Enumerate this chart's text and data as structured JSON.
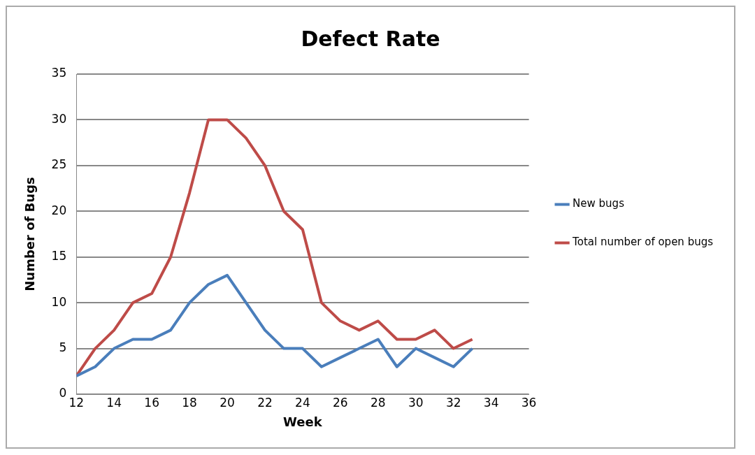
{
  "chart_data": {
    "type": "line",
    "title": "Defect Rate",
    "xlabel": "Week",
    "ylabel": "Number of Bugs",
    "x": [
      12,
      13,
      14,
      15,
      16,
      17,
      18,
      19,
      20,
      21,
      22,
      23,
      24,
      25,
      26,
      27,
      28,
      29,
      30,
      31,
      32,
      33
    ],
    "series": [
      {
        "name": "New bugs",
        "color": "#4a7ebb",
        "values": [
          2,
          3,
          5,
          6,
          6,
          7,
          10,
          12,
          13,
          10,
          7,
          5,
          5,
          3,
          4,
          5,
          6,
          3,
          5,
          4,
          3,
          5
        ]
      },
      {
        "name": "Total number of open bugs",
        "color": "#be4b48",
        "values": [
          2,
          5,
          7,
          10,
          11,
          15,
          22,
          30,
          30,
          28,
          25,
          20,
          18,
          10,
          8,
          7,
          8,
          6,
          6,
          7,
          5,
          6
        ]
      }
    ],
    "xlim": [
      12,
      36
    ],
    "xticks": [
      12,
      14,
      16,
      18,
      20,
      22,
      24,
      26,
      28,
      30,
      32,
      34,
      36
    ],
    "ylim": [
      0,
      35
    ],
    "yticks": [
      0,
      5,
      10,
      15,
      20,
      25,
      30,
      35
    ],
    "grid": "y",
    "legend": "right",
    "marker": "none",
    "line_style": "solid"
  }
}
